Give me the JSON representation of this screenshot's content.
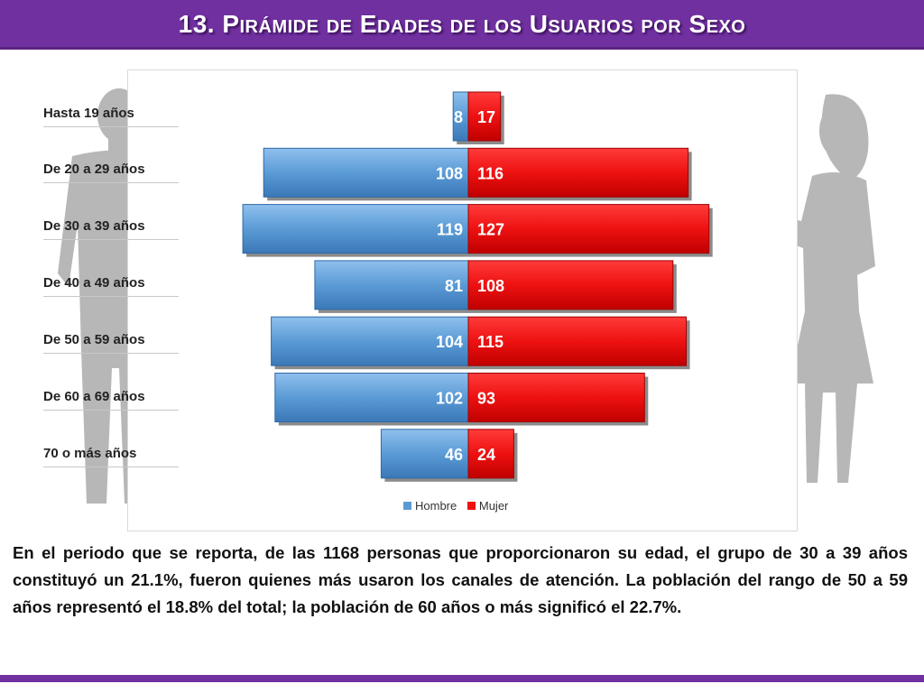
{
  "title": "13. Pirámide de Edades de los Usuarios por Sexo",
  "chart_data": {
    "type": "bar",
    "orientation": "horizontal-population-pyramid",
    "categories": [
      "Hasta 19 años",
      "De 20 a 29 años",
      "De 30 a 39 años",
      "De 40 a 49 años",
      "De 50 a 59 años",
      "De 60 a 69 años",
      "70 o más años"
    ],
    "series": [
      {
        "name": "Hombre",
        "values": [
          8,
          108,
          119,
          81,
          104,
          102,
          46
        ],
        "color": "#5b9bd5"
      },
      {
        "name": "Mujer",
        "values": [
          17,
          116,
          127,
          108,
          115,
          93,
          24
        ],
        "color": "#ee1111"
      }
    ],
    "legend_position": "bottom",
    "grid": false
  },
  "legend": {
    "hombre": "Hombre",
    "mujer": "Mujer"
  },
  "body_text": "En el periodo que se reporta, de las 1168 personas que proporcionaron su edad, el grupo de 30 a 39 años constituyó un 21.1%, fueron quienes más usaron los canales de atención. La población del rango de 50 a 59 años representó el 18.8% del total; la población de 60 años o más significó el 22.7%.",
  "colors": {
    "title_bar": "#7030a0",
    "silhouette": "#b7b7b7"
  }
}
